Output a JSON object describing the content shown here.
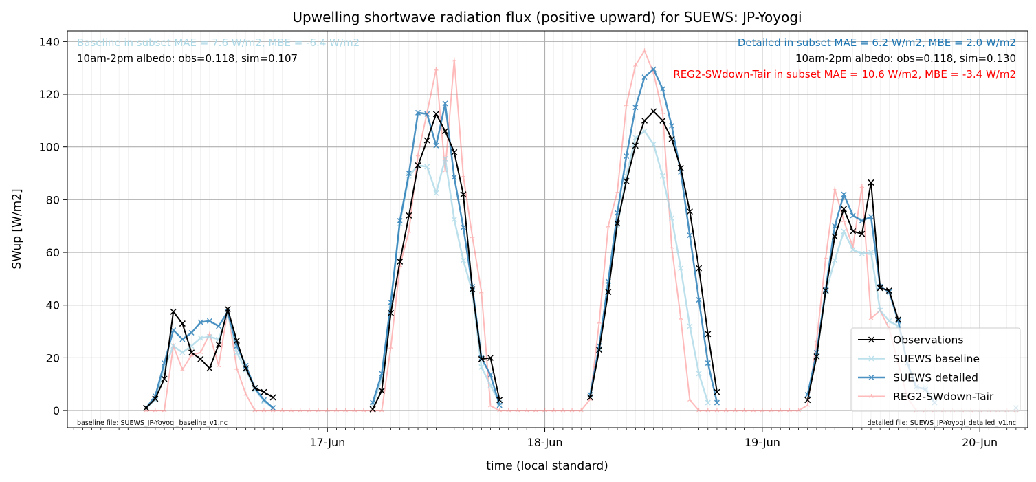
{
  "chart_data": {
    "type": "line",
    "title": "Upwelling shortwave radiation flux (positive upward) for SUEWS: JP-Yoyogi",
    "xlabel": "time (local standard)",
    "ylabel": "SWup [W/m2]",
    "x_unit": "hour",
    "x_tick_labels": [
      {
        "hour": 24,
        "label": "17-Jun"
      },
      {
        "hour": 48,
        "label": "18-Jun"
      },
      {
        "hour": 72,
        "label": "19-Jun"
      },
      {
        "hour": 96,
        "label": "20-Jun"
      }
    ],
    "xlim": [
      -4.7,
      101.3
    ],
    "ylim": [
      -6.5,
      144
    ],
    "yticks": [
      0,
      20,
      40,
      60,
      80,
      100,
      120,
      140
    ],
    "grid": true,
    "legend_position": "lower-right",
    "annotations": {
      "baseline_stats": "Baseline in subset MAE = 7.6 W/m2, MBE = -6.4 W/m2",
      "baseline_albedo": "10am-2pm albedo: obs=0.118, sim=0.107",
      "detailed_stats": "Detailed in subset MAE = 6.2 W/m2, MBE = 2.0 W/m2",
      "detailed_albedo": "10am-2pm albedo: obs=0.118, sim=0.130",
      "reg2_stats": "REG2-SWdown-Tair in subset MAE = 10.6 W/m2, MBE = -3.4 W/m2",
      "baseline_file": "baseline file: SUEWS_JP-Yoyogi_baseline_v1.nc",
      "detailed_file": "detailed file: SUEWS_JP-Yoyogi_detailed_v1.nc"
    },
    "series": [
      {
        "name": "REG2-SWdown-Tair",
        "color": "#ff6b6b",
        "marker": "tri",
        "points": [
          [
            4,
            0
          ],
          [
            5,
            0
          ],
          [
            6,
            0
          ],
          [
            7,
            24.5
          ],
          [
            8,
            15.5
          ],
          [
            9,
            21
          ],
          [
            10,
            22
          ],
          [
            11,
            29
          ],
          [
            12,
            17
          ],
          [
            13,
            38
          ],
          [
            14,
            16
          ],
          [
            15,
            6.2
          ],
          [
            16,
            0
          ],
          [
            17,
            0
          ],
          [
            18,
            0
          ],
          [
            19,
            0
          ],
          [
            20,
            0
          ],
          [
            21,
            0
          ],
          [
            22,
            0
          ],
          [
            23,
            0
          ],
          [
            24,
            0
          ],
          [
            25,
            0
          ],
          [
            26,
            0
          ],
          [
            27,
            0
          ],
          [
            28,
            0
          ],
          [
            29,
            0
          ],
          [
            30,
            0
          ],
          [
            31,
            24
          ],
          [
            32,
            55
          ],
          [
            33,
            68
          ],
          [
            34,
            97
          ],
          [
            35,
            113
          ],
          [
            36,
            129.5
          ],
          [
            37,
            91
          ],
          [
            38,
            133
          ],
          [
            39,
            89
          ],
          [
            40,
            66
          ],
          [
            41,
            45
          ],
          [
            42,
            1.8
          ],
          [
            43,
            0
          ],
          [
            44,
            0
          ],
          [
            45,
            0
          ],
          [
            46,
            0
          ],
          [
            47,
            0
          ],
          [
            48,
            0
          ],
          [
            49,
            0
          ],
          [
            50,
            0
          ],
          [
            51,
            0
          ],
          [
            52,
            0
          ],
          [
            53,
            4.3
          ],
          [
            54,
            33.5
          ],
          [
            55,
            70
          ],
          [
            56,
            83
          ],
          [
            57,
            116
          ],
          [
            58,
            131
          ],
          [
            59,
            136.5
          ],
          [
            60,
            128
          ],
          [
            61,
            113
          ],
          [
            62,
            62
          ],
          [
            63,
            35
          ],
          [
            64,
            4
          ],
          [
            65,
            0
          ],
          [
            66,
            0
          ],
          [
            67,
            0
          ],
          [
            68,
            0
          ],
          [
            69,
            0
          ],
          [
            70,
            0
          ],
          [
            71,
            0
          ],
          [
            72,
            0
          ],
          [
            73,
            0
          ],
          [
            74,
            0
          ],
          [
            75,
            0
          ],
          [
            76,
            0
          ],
          [
            77,
            2
          ],
          [
            78,
            26.5
          ],
          [
            79,
            58
          ],
          [
            80,
            84
          ],
          [
            81,
            72
          ],
          [
            82,
            62
          ],
          [
            83,
            85
          ],
          [
            84,
            35
          ],
          [
            85,
            38
          ],
          [
            86,
            31
          ],
          [
            87,
            18
          ],
          [
            88,
            5
          ],
          [
            89,
            0
          ],
          [
            90,
            0
          ],
          [
            91,
            0
          ],
          [
            92,
            0
          ],
          [
            93,
            0
          ],
          [
            94,
            0
          ],
          [
            95,
            0
          ],
          [
            96,
            0
          ],
          [
            97,
            0
          ],
          [
            98,
            0
          ],
          [
            99,
            0
          ],
          [
            100,
            0
          ]
        ]
      },
      {
        "name": "SUEWS baseline",
        "color": "#a6d6e6",
        "marker": "x",
        "points": [
          [
            4,
            1
          ],
          [
            5,
            4
          ],
          [
            6,
            16
          ],
          [
            7,
            24.5
          ],
          [
            8,
            22
          ],
          [
            9,
            24.5
          ],
          [
            10,
            27.5
          ],
          [
            11,
            28
          ],
          [
            12,
            27
          ],
          [
            13,
            37
          ],
          [
            14,
            22
          ],
          [
            15,
            15.5
          ],
          [
            16,
            8
          ],
          [
            17,
            3.5
          ],
          [
            18,
            1
          ],
          [
            29,
            2
          ],
          [
            30,
            12
          ],
          [
            31,
            40
          ],
          [
            32,
            71
          ],
          [
            33,
            89
          ],
          [
            34,
            93
          ],
          [
            35,
            92.5
          ],
          [
            36,
            82.5
          ],
          [
            37,
            95.5
          ],
          [
            38,
            72.5
          ],
          [
            39,
            57
          ],
          [
            40,
            45
          ],
          [
            41,
            16.5
          ],
          [
            42,
            9.5
          ],
          [
            43,
            3
          ],
          [
            53,
            5
          ],
          [
            54,
            23.5
          ],
          [
            55,
            48
          ],
          [
            56,
            70
          ],
          [
            57,
            89
          ],
          [
            58,
            103.5
          ],
          [
            59,
            106
          ],
          [
            60,
            101
          ],
          [
            61,
            89
          ],
          [
            62,
            73
          ],
          [
            63,
            54
          ],
          [
            64,
            32
          ],
          [
            65,
            14
          ],
          [
            66,
            3
          ],
          [
            77,
            6
          ],
          [
            78,
            21
          ],
          [
            79,
            45
          ],
          [
            80,
            57
          ],
          [
            81,
            68
          ],
          [
            82,
            61
          ],
          [
            83,
            59.5
          ],
          [
            84,
            60
          ],
          [
            85,
            38
          ],
          [
            86,
            34
          ],
          [
            87,
            32
          ],
          [
            88,
            18
          ],
          [
            89,
            8
          ],
          [
            90,
            9
          ],
          [
            91,
            3
          ],
          [
            100,
            1
          ]
        ]
      },
      {
        "name": "SUEWS detailed",
        "color": "#1f77b4",
        "marker": "x",
        "points": [
          [
            4,
            1
          ],
          [
            5,
            5.5
          ],
          [
            6,
            18
          ],
          [
            7,
            30.5
          ],
          [
            8,
            27
          ],
          [
            9,
            29.5
          ],
          [
            10,
            33.5
          ],
          [
            11,
            34
          ],
          [
            12,
            32
          ],
          [
            13,
            37.5
          ],
          [
            14,
            24.5
          ],
          [
            15,
            17
          ],
          [
            16,
            8.5
          ],
          [
            17,
            4
          ],
          [
            18,
            1
          ],
          [
            29,
            3
          ],
          [
            30,
            14
          ],
          [
            31,
            41
          ],
          [
            32,
            72
          ],
          [
            33,
            90
          ],
          [
            34,
            113
          ],
          [
            35,
            112.5
          ],
          [
            36,
            100.5
          ],
          [
            37,
            116.5
          ],
          [
            38,
            88.5
          ],
          [
            39,
            69.5
          ],
          [
            40,
            47
          ],
          [
            41,
            20
          ],
          [
            42,
            13.5
          ],
          [
            43,
            2
          ],
          [
            53,
            6
          ],
          [
            54,
            24.5
          ],
          [
            55,
            49
          ],
          [
            56,
            75
          ],
          [
            57,
            96.5
          ],
          [
            58,
            115
          ],
          [
            59,
            126.5
          ],
          [
            60,
            129.5
          ],
          [
            61,
            122
          ],
          [
            62,
            108
          ],
          [
            63,
            90.5
          ],
          [
            64,
            66.5
          ],
          [
            65,
            42
          ],
          [
            66,
            18
          ],
          [
            67,
            3
          ],
          [
            77,
            6
          ],
          [
            78,
            22
          ],
          [
            79,
            46
          ],
          [
            80,
            70
          ],
          [
            81,
            82
          ],
          [
            82,
            74
          ],
          [
            83,
            72
          ],
          [
            84,
            73.5
          ],
          [
            85,
            47
          ],
          [
            86,
            45
          ],
          [
            87,
            34
          ],
          [
            88,
            18
          ],
          [
            89,
            9
          ],
          [
            90,
            8
          ],
          [
            91,
            3
          ],
          [
            100,
            1
          ]
        ]
      },
      {
        "name": "Observations",
        "color": "#000000",
        "marker": "x",
        "segments": [
          [
            [
              4,
              1
            ],
            [
              5,
              4.5
            ],
            [
              6,
              12
            ],
            [
              7,
              37.5
            ],
            [
              8,
              33
            ],
            [
              9,
              22
            ],
            [
              10,
              19.5
            ],
            [
              11,
              16
            ],
            [
              12,
              25
            ],
            [
              13,
              38.5
            ],
            [
              14,
              26.5
            ],
            [
              15,
              16
            ],
            [
              16,
              8.5
            ],
            [
              17,
              7
            ],
            [
              18,
              5
            ]
          ],
          [
            [
              29,
              0.5
            ],
            [
              30,
              7.5
            ],
            [
              31,
              37
            ],
            [
              32,
              56.5
            ],
            [
              33,
              74
            ],
            [
              34,
              93
            ],
            [
              35,
              102.5
            ],
            [
              36,
              112.5
            ],
            [
              37,
              106
            ],
            [
              38,
              98
            ],
            [
              39,
              82
            ],
            [
              40,
              46
            ],
            [
              41,
              19.5
            ],
            [
              42,
              20
            ],
            [
              43,
              4
            ]
          ],
          [
            [
              53,
              5
            ],
            [
              54,
              23
            ],
            [
              55,
              45
            ],
            [
              56,
              71
            ],
            [
              57,
              87
            ],
            [
              58,
              100.5
            ],
            [
              59,
              110
            ],
            [
              60,
              113.5
            ],
            [
              61,
              110
            ],
            [
              62,
              103
            ],
            [
              63,
              92
            ],
            [
              64,
              75.5
            ],
            [
              65,
              54
            ],
            [
              66,
              29
            ],
            [
              67,
              7
            ]
          ],
          [
            [
              77,
              4
            ],
            [
              78,
              20.5
            ],
            [
              79,
              45.5
            ],
            [
              80,
              66
            ],
            [
              81,
              76.5
            ],
            [
              82,
              68
            ],
            [
              83,
              67
            ],
            [
              84,
              86.5
            ],
            [
              85,
              46.5
            ],
            [
              86,
              45.5
            ],
            [
              87,
              34.5
            ]
          ]
        ]
      }
    ]
  }
}
